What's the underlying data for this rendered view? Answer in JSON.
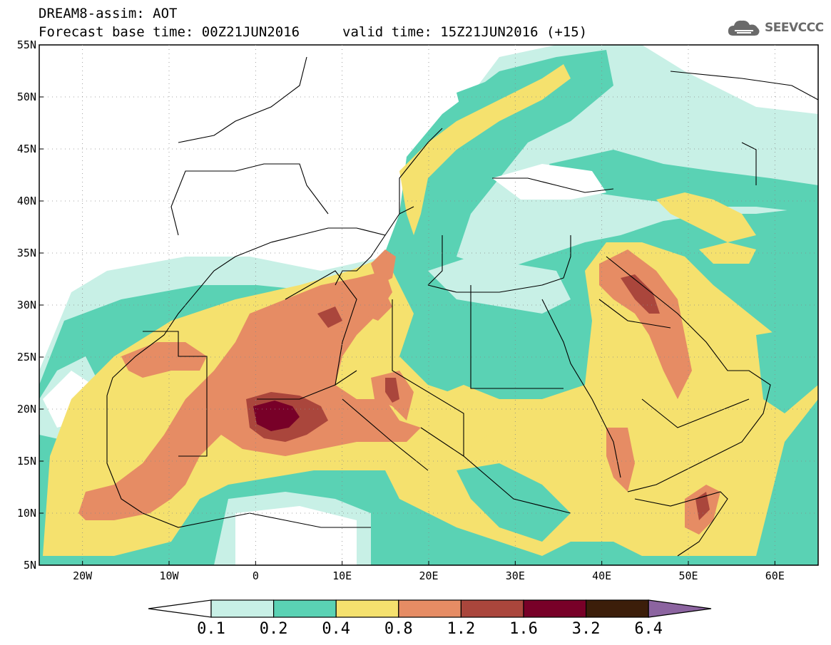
{
  "header": {
    "product": "DREAM8-assim: AOT",
    "base_time": "Forecast base time: 00Z21JUN2016",
    "valid_time": "valid time: 15Z21JUN2016 (+15)",
    "logo_text": "SEEVCCC",
    "logo_icon": "cloud-icon"
  },
  "map": {
    "lat_labels": [
      "55N",
      "50N",
      "45N",
      "40N",
      "35N",
      "30N",
      "25N",
      "20N",
      "15N",
      "10N",
      "5N"
    ],
    "lon_labels": [
      "20W",
      "10W",
      "0",
      "10E",
      "20E",
      "30E",
      "40E",
      "50E",
      "60E"
    ]
  },
  "legend": {
    "levels": [
      "0.1",
      "0.2",
      "0.4",
      "0.8",
      "1.2",
      "1.6",
      "3.2",
      "6.4"
    ],
    "colors": [
      "#ffffff",
      "#c8f0e6",
      "#5ad2b4",
      "#f5e16e",
      "#e68c64",
      "#aa463c",
      "#780028",
      "#3c1e0a",
      "#8c64a0"
    ]
  }
}
